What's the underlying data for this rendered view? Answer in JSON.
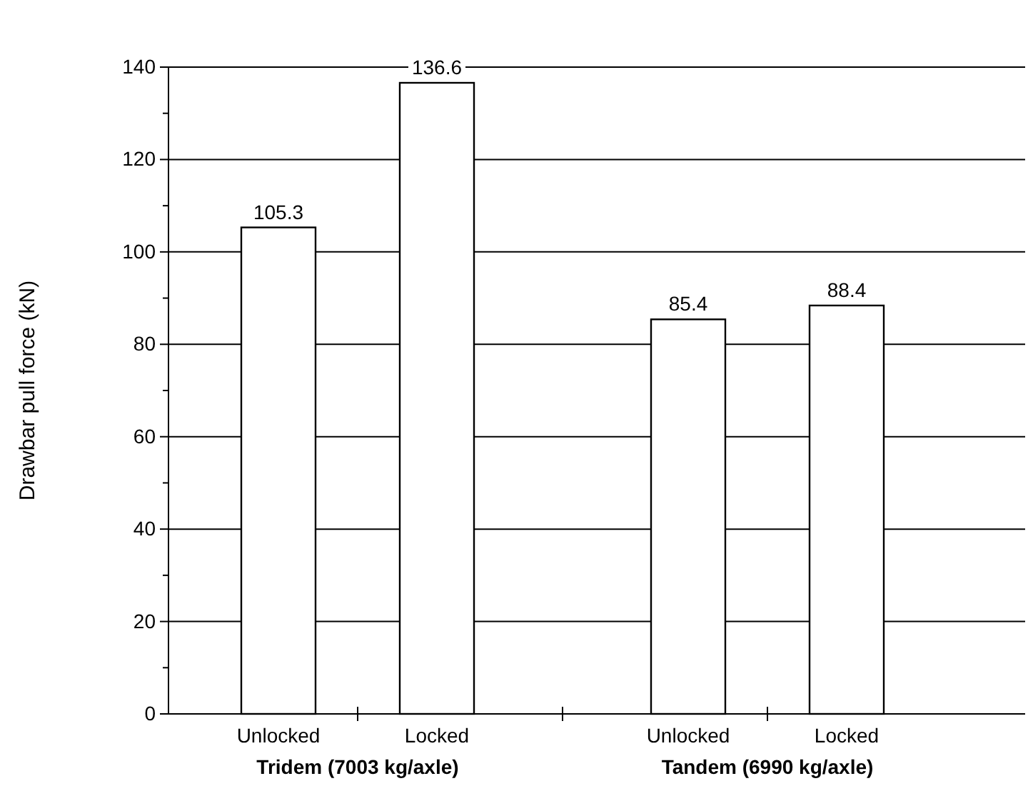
{
  "chart_data": {
    "type": "bar",
    "ylabel": "Drawbar pull force (kN)",
    "categories": [
      "Unlocked",
      "Locked",
      "Unlocked",
      "Locked"
    ],
    "values": [
      105.3,
      136.6,
      85.4,
      88.4
    ],
    "color": "#ffffff",
    "ylim": [
      0,
      140
    ],
    "yticks": [
      0,
      20,
      40,
      60,
      80,
      100,
      120,
      140
    ],
    "grid": "y",
    "data_labels": true,
    "annotations": [
      "Tridem (7003 kg/axle)",
      "Tandem (6990 kg/axle)"
    ]
  }
}
